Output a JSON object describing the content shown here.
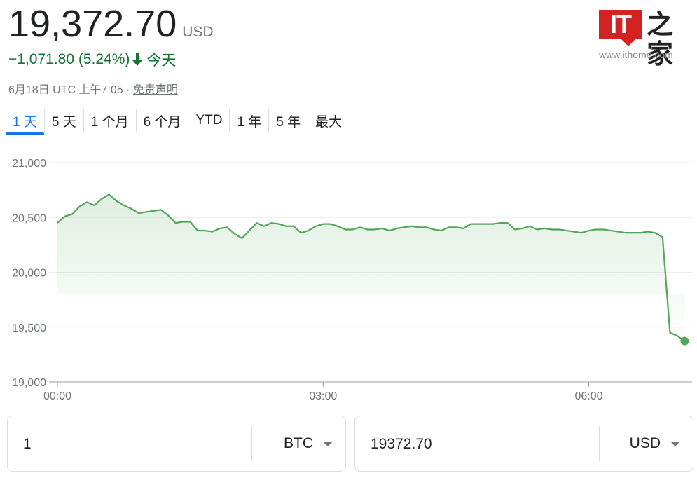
{
  "quote": {
    "price": "19,372.70",
    "currency": "USD",
    "change": "−1,071.80 (5.24%)",
    "period": "今天",
    "direction": "down",
    "timestamp": "6月18日 UTC 上午7:05",
    "separator": " · ",
    "disclaimer": "免责声明",
    "color_negative": "#137333",
    "line_color": "#52a559"
  },
  "logo": {
    "mark": "IT",
    "cn": "之家",
    "url": "www.ithome.com",
    "color": "#d22222"
  },
  "tabs": [
    {
      "label": "1 天",
      "active": true
    },
    {
      "label": "5 天",
      "active": false
    },
    {
      "label": "1 个月",
      "active": false
    },
    {
      "label": "6 个月",
      "active": false
    },
    {
      "label": "YTD",
      "active": false
    },
    {
      "label": "1 年",
      "active": false
    },
    {
      "label": "5 年",
      "active": false
    },
    {
      "label": "最大",
      "active": false
    }
  ],
  "accent_color": "#1a73e8",
  "chart_data": {
    "type": "area",
    "ylim": [
      19000,
      21000
    ],
    "yticks": [
      "21,000",
      "20,500",
      "20,000",
      "19,500",
      "19,000"
    ],
    "yticks_values": [
      21000,
      20500,
      20000,
      19500,
      19000
    ],
    "xticks": [
      "00:00",
      "03:00",
      "06:00"
    ],
    "xticks_values": [
      0,
      180,
      360
    ],
    "xlim": [
      0,
      430
    ],
    "grid": true,
    "series": [
      {
        "x": [
          0,
          5,
          10,
          15,
          20,
          25,
          30,
          35,
          40,
          45,
          50,
          55,
          60,
          65,
          70,
          75,
          80,
          85,
          90,
          95,
          100,
          105,
          110,
          115,
          120,
          125,
          130,
          135,
          140,
          145,
          150,
          155,
          160,
          165,
          170,
          175,
          180,
          185,
          190,
          195,
          200,
          205,
          210,
          215,
          220,
          225,
          230,
          235,
          240,
          245,
          250,
          255,
          260,
          265,
          270,
          275,
          280,
          285,
          290,
          295,
          300,
          305,
          310,
          315,
          320,
          325,
          330,
          335,
          340,
          345,
          350,
          355,
          360,
          365,
          370,
          375,
          380,
          385,
          390,
          395,
          400,
          405,
          410,
          415,
          420,
          425
        ],
        "y": [
          20450,
          20510,
          20530,
          20600,
          20640,
          20610,
          20670,
          20710,
          20650,
          20610,
          20580,
          20540,
          20550,
          20560,
          20570,
          20520,
          20450,
          20460,
          20460,
          20380,
          20380,
          20370,
          20400,
          20410,
          20350,
          20310,
          20380,
          20450,
          20420,
          20450,
          20440,
          20420,
          20420,
          20360,
          20380,
          20420,
          20440,
          20440,
          20420,
          20390,
          20390,
          20410,
          20390,
          20390,
          20400,
          20380,
          20400,
          20410,
          20420,
          20410,
          20410,
          20390,
          20380,
          20410,
          20410,
          20400,
          20440,
          20440,
          20440,
          20440,
          20450,
          20450,
          20390,
          20400,
          20420,
          20390,
          20400,
          20390,
          20390,
          20380,
          20370,
          20360,
          20380,
          20390,
          20390,
          20380,
          20370,
          20360,
          20360,
          20360,
          20370,
          20360,
          20320,
          19450,
          19420,
          19372.7
        ]
      }
    ]
  },
  "converter": {
    "from_amount": "1",
    "from_unit": "BTC",
    "to_amount": "19372.70",
    "to_unit": "USD"
  }
}
